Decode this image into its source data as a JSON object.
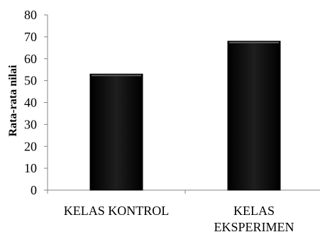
{
  "chart_data": {
    "type": "bar",
    "categories": [
      [
        "KELAS KONTROL"
      ],
      [
        "KELAS",
        "EKSPERIMEN"
      ]
    ],
    "values": [
      53,
      68
    ],
    "title": "",
    "xlabel": "",
    "ylabel": "Rata-rata nilai",
    "ylim": [
      0,
      80
    ],
    "yticks": [
      0,
      10,
      20,
      30,
      40,
      50,
      60,
      70,
      80
    ],
    "grid": false,
    "legend": "none",
    "colors": {
      "bar_fill": "#000000",
      "bar_highlight": "#5a5a5a",
      "axis": "#868686",
      "text": "#000000"
    }
  }
}
